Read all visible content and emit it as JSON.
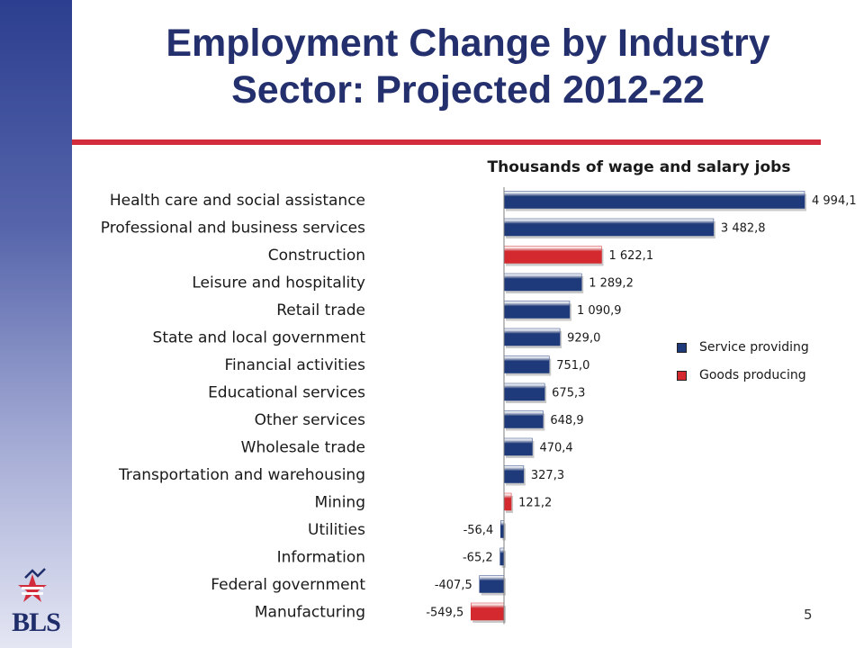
{
  "slide": {
    "title_line1": "Employment Change by Industry",
    "title_line2": "Sector: Projected 2012-22",
    "page_number": "5",
    "logo_text": "BLS"
  },
  "colors": {
    "service": "#1f3a7a",
    "goods": "#d42a2f",
    "title": "#24306e",
    "rule": "#d22b3c"
  },
  "chart_data": {
    "type": "bar",
    "orientation": "horizontal",
    "title": "Thousands of wage and salary jobs",
    "legend_position": "right",
    "series": [
      {
        "name": "Service providing",
        "color": "#1f3a7a"
      },
      {
        "name": "Goods producing",
        "color": "#d42a2f"
      }
    ],
    "categories": [
      "Health care and social assistance",
      "Professional and business services",
      "Construction",
      "Leisure and hospitality",
      "Retail trade",
      "State and local government",
      "Financial activities",
      "Educational services",
      "Other services",
      "Wholesale trade",
      "Transportation and warehousing",
      "Mining",
      "Utilities",
      "Information",
      "Federal government",
      "Manufacturing"
    ],
    "values": [
      4994.1,
      3482.8,
      1622.1,
      1289.2,
      1090.9,
      929.0,
      751.0,
      675.3,
      648.9,
      470.4,
      327.3,
      121.2,
      -56.4,
      -65.2,
      -407.5,
      -549.5
    ],
    "value_labels": [
      "4 994,1",
      "3 482,8",
      "1 622,1",
      "1 289,2",
      "1 090,9",
      "929,0",
      "751,0",
      "675,3",
      "648,9",
      "470,4",
      "327,3",
      "121,2",
      "-56,4",
      "-65,2",
      "-407,5",
      "-549,5"
    ],
    "sector": [
      "service",
      "service",
      "goods",
      "service",
      "service",
      "service",
      "service",
      "service",
      "service",
      "service",
      "service",
      "goods",
      "service",
      "service",
      "service",
      "goods"
    ]
  }
}
